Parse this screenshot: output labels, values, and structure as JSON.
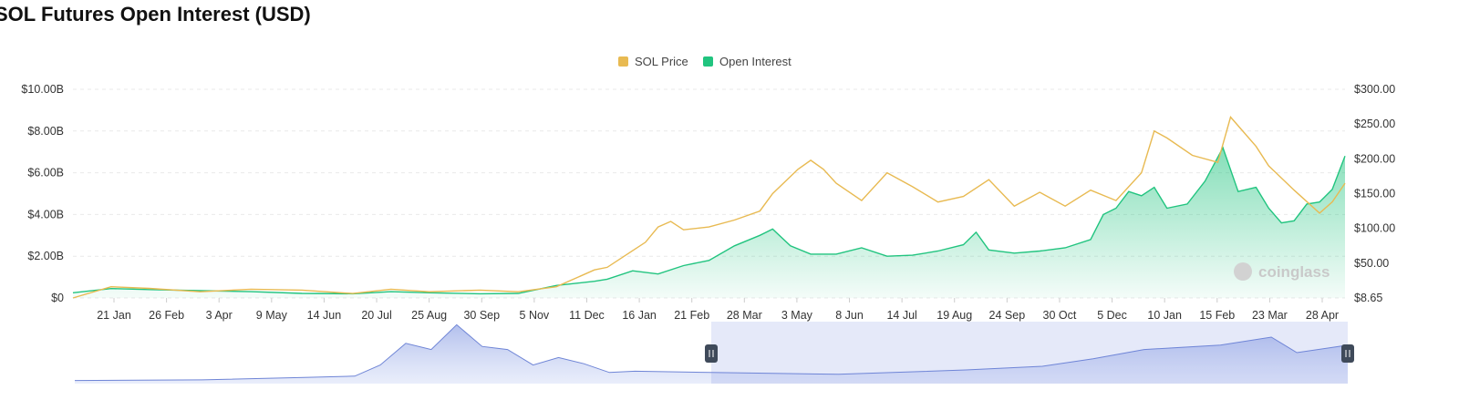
{
  "chart_data": {
    "type": "line",
    "title": "SOL Futures Open Interest (USD)",
    "legend": [
      {
        "name": "SOL Price",
        "color": "#e8ba52"
      },
      {
        "name": "Open Interest",
        "color": "#21c47f"
      }
    ],
    "watermark": "coinglass",
    "x_ticks": [
      "21 Jan",
      "26 Feb",
      "3 Apr",
      "9 May",
      "14 Jun",
      "20 Jul",
      "25 Aug",
      "30 Sep",
      "5 Nov",
      "11 Dec",
      "16 Jan",
      "21 Feb",
      "28 Mar",
      "3 May",
      "8 Jun",
      "14 Jul",
      "19 Aug",
      "24 Sep",
      "30 Oct",
      "5 Dec",
      "10 Jan",
      "15 Feb",
      "23 Mar",
      "28 Apr"
    ],
    "y_left": {
      "ticks": [
        "$0",
        "$2.00B",
        "$4.00B",
        "$6.00B",
        "$8.00B",
        "$10.00B"
      ],
      "range": [
        0,
        10
      ]
    },
    "y_right": {
      "ticks": [
        "$8.65",
        "$50.00",
        "$100.00",
        "$150.00",
        "$200.00",
        "$250.00",
        "$300.00"
      ],
      "values": [
        8.65,
        50,
        100,
        150,
        200,
        250,
        300
      ]
    },
    "x_range": [
      0,
      50
    ],
    "series": [
      {
        "name": "Open Interest",
        "unit": "USD billions",
        "axis": "left",
        "points": [
          [
            0,
            0.25
          ],
          [
            1.5,
            0.45
          ],
          [
            3,
            0.4
          ],
          [
            5,
            0.35
          ],
          [
            7,
            0.3
          ],
          [
            9,
            0.22
          ],
          [
            11,
            0.2
          ],
          [
            12.5,
            0.3
          ],
          [
            14,
            0.25
          ],
          [
            16,
            0.2
          ],
          [
            17.5,
            0.22
          ],
          [
            19,
            0.6
          ],
          [
            20.5,
            0.8
          ],
          [
            21,
            0.9
          ],
          [
            22,
            1.3
          ],
          [
            23,
            1.15
          ],
          [
            24,
            1.55
          ],
          [
            25,
            1.8
          ],
          [
            26,
            2.5
          ],
          [
            27,
            3.0
          ],
          [
            27.5,
            3.3
          ],
          [
            28.2,
            2.5
          ],
          [
            29,
            2.1
          ],
          [
            30,
            2.1
          ],
          [
            31,
            2.4
          ],
          [
            32,
            2.0
          ],
          [
            33,
            2.05
          ],
          [
            34,
            2.25
          ],
          [
            35,
            2.55
          ],
          [
            35.5,
            3.15
          ],
          [
            36,
            2.3
          ],
          [
            37,
            2.15
          ],
          [
            38,
            2.25
          ],
          [
            39,
            2.4
          ],
          [
            40,
            2.8
          ],
          [
            40.5,
            4.0
          ],
          [
            41,
            4.3
          ],
          [
            41.5,
            5.1
          ],
          [
            42,
            4.9
          ],
          [
            42.5,
            5.3
          ],
          [
            43,
            4.3
          ],
          [
            43.8,
            4.5
          ],
          [
            44.5,
            5.6
          ],
          [
            45.2,
            7.2
          ],
          [
            45.8,
            5.1
          ],
          [
            46.5,
            5.3
          ],
          [
            47,
            4.3
          ],
          [
            47.5,
            3.6
          ],
          [
            48,
            3.7
          ],
          [
            48.5,
            4.5
          ],
          [
            49,
            4.6
          ],
          [
            49.5,
            5.2
          ],
          [
            50,
            6.8
          ]
        ]
      },
      {
        "name": "SOL Price",
        "unit": "USD",
        "axis": "right",
        "points": [
          [
            0,
            8.65
          ],
          [
            1.5,
            22
          ],
          [
            3,
            20
          ],
          [
            5,
            16
          ],
          [
            7,
            19
          ],
          [
            9,
            18
          ],
          [
            11,
            14
          ],
          [
            12.5,
            19
          ],
          [
            14,
            16
          ],
          [
            16,
            18
          ],
          [
            17.5,
            16
          ],
          [
            19,
            22
          ],
          [
            20.5,
            42
          ],
          [
            21,
            45
          ],
          [
            22,
            68
          ],
          [
            22.5,
            80
          ],
          [
            23,
            102
          ],
          [
            23.5,
            110
          ],
          [
            24,
            98
          ],
          [
            25,
            102
          ],
          [
            26,
            112
          ],
          [
            27,
            125
          ],
          [
            27.5,
            150
          ],
          [
            28.5,
            185
          ],
          [
            29,
            198
          ],
          [
            29.5,
            185
          ],
          [
            30,
            165
          ],
          [
            31,
            140
          ],
          [
            32,
            180
          ],
          [
            33,
            160
          ],
          [
            34,
            138
          ],
          [
            35,
            146
          ],
          [
            36,
            170
          ],
          [
            37,
            132
          ],
          [
            38,
            152
          ],
          [
            39,
            132
          ],
          [
            40,
            155
          ],
          [
            41,
            140
          ],
          [
            42,
            180
          ],
          [
            42.5,
            240
          ],
          [
            43,
            230
          ],
          [
            44,
            205
          ],
          [
            45,
            195
          ],
          [
            45.5,
            260
          ],
          [
            46.5,
            218
          ],
          [
            47,
            190
          ],
          [
            48,
            155
          ],
          [
            49,
            122
          ],
          [
            49.5,
            138
          ],
          [
            50,
            165
          ]
        ]
      }
    ],
    "navigator": {
      "series_name": "Open Interest",
      "points": [
        [
          0,
          0.05
        ],
        [
          5,
          0.06
        ],
        [
          9,
          0.1
        ],
        [
          11,
          0.12
        ],
        [
          12,
          0.3
        ],
        [
          13,
          0.65
        ],
        [
          14,
          0.55
        ],
        [
          15,
          0.95
        ],
        [
          16,
          0.6
        ],
        [
          17,
          0.55
        ],
        [
          18,
          0.3
        ],
        [
          19,
          0.42
        ],
        [
          20,
          0.32
        ],
        [
          21,
          0.18
        ],
        [
          22,
          0.2
        ],
        [
          25,
          0.18
        ],
        [
          30,
          0.15
        ],
        [
          35,
          0.22
        ],
        [
          38,
          0.28
        ],
        [
          40,
          0.4
        ],
        [
          42,
          0.55
        ],
        [
          45,
          0.62
        ],
        [
          47,
          0.75
        ],
        [
          48,
          0.5
        ],
        [
          50,
          0.62
        ]
      ]
    }
  }
}
